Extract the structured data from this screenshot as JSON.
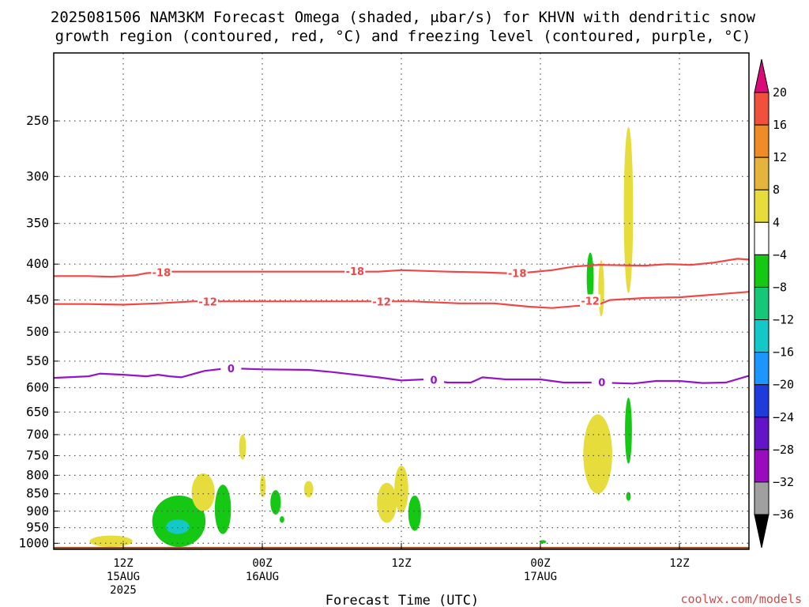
{
  "chart_data": {
    "type": "heatmap",
    "title_line1": "2025081506 NAM3KM Forecast Omega (shaded, μbar/s) for KHVN with dendritic snow",
    "title_line2": "growth region (contoured, red, °C) and freezing level (contoured, purple, °C)",
    "xlabel": "Forecast Time (UTC)",
    "ylabel": "",
    "credit": "coolwx.com/models",
    "x_range_hours": [
      -6,
      54
    ],
    "y_scale": "log-pressure",
    "y_range_hPa": [
      1020,
      200
    ],
    "y_ticks": [
      250,
      300,
      350,
      400,
      450,
      500,
      550,
      600,
      650,
      700,
      750,
      800,
      850,
      900,
      950,
      1000
    ],
    "x_ticks": [
      {
        "hour": 0,
        "line1": "12Z",
        "line2": "15AUG",
        "line3": "2025"
      },
      {
        "hour": 12,
        "line1": "00Z",
        "line2": "16AUG",
        "line3": ""
      },
      {
        "hour": 24,
        "line1": "12Z",
        "line2": "",
        "line3": ""
      },
      {
        "hour": 36,
        "line1": "00Z",
        "line2": "17AUG",
        "line3": ""
      },
      {
        "hour": 48,
        "line1": "12Z",
        "line2": "",
        "line3": ""
      }
    ],
    "grid": "dotted horizontal at each y tick, dotted vertical at each x tick",
    "ground_color": "#a0522d",
    "colorbar": {
      "levels": [
        "20",
        "16",
        "12",
        "8",
        "4",
        "−4",
        "−8",
        "−12",
        "−16",
        "−20",
        "−24",
        "−28",
        "−32",
        "−36"
      ],
      "colors": [
        "#dc2850",
        "#f0503c",
        "#f08c28",
        "#e6b43c",
        "#e6dc3c",
        "#ffffff",
        "#14c814",
        "#14c878",
        "#14c8c8",
        "#1e96ff",
        "#1e3cdc",
        "#6414c8",
        "#9a0abe",
        "#a0a0a0",
        "#000000"
      ],
      "top_arrow_color": "#dc0a78",
      "bottom_arrow_color": "#000000"
    },
    "contours": [
      {
        "name": "-18",
        "color": "#f04646",
        "points": [
          [
            -6,
            416
          ],
          [
            -3,
            416
          ],
          [
            -1,
            417
          ],
          [
            1,
            415
          ],
          [
            2,
            412
          ],
          [
            4,
            410
          ],
          [
            8,
            410
          ],
          [
            12,
            410
          ],
          [
            18,
            410
          ],
          [
            22,
            410
          ],
          [
            24,
            408
          ],
          [
            28,
            410
          ],
          [
            31,
            411
          ],
          [
            33,
            412
          ],
          [
            35,
            411
          ],
          [
            37,
            408
          ],
          [
            39,
            403
          ],
          [
            41,
            401
          ],
          [
            45,
            402
          ],
          [
            47,
            400
          ],
          [
            49,
            401
          ],
          [
            51,
            398
          ],
          [
            53,
            393
          ],
          [
            54,
            394
          ]
        ],
        "labels": [
          {
            "x": 3.3,
            "p": 411
          },
          {
            "x": 20,
            "p": 409
          },
          {
            "x": 34,
            "p": 412
          }
        ]
      },
      {
        "name": "-12",
        "color": "#f04646",
        "points": [
          [
            -6,
            456
          ],
          [
            -3,
            456
          ],
          [
            0,
            457
          ],
          [
            3,
            455
          ],
          [
            6,
            452
          ],
          [
            9,
            452
          ],
          [
            14,
            452
          ],
          [
            20,
            452
          ],
          [
            25,
            452
          ],
          [
            29,
            455
          ],
          [
            32,
            455
          ],
          [
            35,
            460
          ],
          [
            37,
            462
          ],
          [
            39,
            459
          ],
          [
            41,
            457
          ],
          [
            42,
            450
          ],
          [
            45,
            447
          ],
          [
            48,
            446
          ],
          [
            51,
            442
          ],
          [
            54,
            438
          ]
        ],
        "labels": [
          {
            "x": 7.3,
            "p": 452
          },
          {
            "x": 22.3,
            "p": 452
          },
          {
            "x": 40.3,
            "p": 451
          }
        ]
      },
      {
        "name": "0",
        "color": "#9614c8",
        "points": [
          [
            -6,
            581
          ],
          [
            -3,
            578
          ],
          [
            -2,
            573
          ],
          [
            0,
            575
          ],
          [
            2,
            578
          ],
          [
            3,
            575
          ],
          [
            4,
            578
          ],
          [
            5,
            580
          ],
          [
            7,
            568
          ],
          [
            9,
            563
          ],
          [
            12,
            565
          ],
          [
            16,
            566
          ],
          [
            18,
            570
          ],
          [
            22,
            580
          ],
          [
            24,
            586
          ],
          [
            26,
            584
          ],
          [
            28,
            590
          ],
          [
            30,
            590
          ],
          [
            31,
            580
          ],
          [
            33,
            584
          ],
          [
            36,
            584
          ],
          [
            38,
            590
          ],
          [
            41,
            590
          ],
          [
            44,
            592
          ],
          [
            46,
            587
          ],
          [
            48,
            587
          ],
          [
            50,
            591
          ],
          [
            52,
            590
          ],
          [
            54,
            577
          ]
        ],
        "labels": [
          {
            "x": 9.3,
            "p": 563
          },
          {
            "x": 26.8,
            "p": 585
          },
          {
            "x": 41.3,
            "p": 589
          }
        ]
      }
    ],
    "omega_cells": [
      {
        "x": [
          -2.9,
          0.8
        ],
        "p": [
          1012,
          975
        ],
        "value": 6
      },
      {
        "x": [
          2.5,
          7.1
        ],
        "p": [
          1012,
          855
        ],
        "value": -8
      },
      {
        "x": [
          3.7,
          5.7
        ],
        "p": [
          970,
          925
        ],
        "value": -16
      },
      {
        "x": [
          5.9,
          7.9
        ],
        "p": [
          900,
          795
        ],
        "value": 6
      },
      {
        "x": [
          7.9,
          9.3
        ],
        "p": [
          970,
          825
        ],
        "value": -8
      },
      {
        "x": [
          10.0,
          10.6
        ],
        "p": [
          760,
          700
        ],
        "value": 6
      },
      {
        "x": [
          11.8,
          12.3
        ],
        "p": [
          860,
          800
        ],
        "value": 6
      },
      {
        "x": [
          12.7,
          13.6
        ],
        "p": [
          910,
          840
        ],
        "value": -8
      },
      {
        "x": [
          13.5,
          13.9
        ],
        "p": [
          935,
          915
        ],
        "value": -8
      },
      {
        "x": [
          15.6,
          16.4
        ],
        "p": [
          860,
          815
        ],
        "value": 6
      },
      {
        "x": [
          21.9,
          23.6
        ],
        "p": [
          935,
          820
        ],
        "value": 6
      },
      {
        "x": [
          23.4,
          24.6
        ],
        "p": [
          905,
          775
        ],
        "value": 6
      },
      {
        "x": [
          24.6,
          25.7
        ],
        "p": [
          960,
          855
        ],
        "value": -8
      },
      {
        "x": [
          35.9,
          36.5
        ],
        "p": [
          1000,
          990
        ],
        "value": -8
      },
      {
        "x": [
          39.7,
          42.2
        ],
        "p": [
          850,
          655
        ],
        "value": 6
      },
      {
        "x": [
          40.0,
          40.6
        ],
        "p": [
          455,
          385
        ],
        "value": -8
      },
      {
        "x": [
          41.0,
          41.5
        ],
        "p": [
          475,
          395
        ],
        "value": 6
      },
      {
        "x": [
          43.3,
          43.9
        ],
        "p": [
          770,
          620
        ],
        "value": -8
      },
      {
        "x": [
          43.4,
          43.8
        ],
        "p": [
          870,
          845
        ],
        "value": -8
      },
      {
        "x": [
          43.2,
          44.0
        ],
        "p": [
          440,
          255
        ],
        "value": 6
      }
    ]
  }
}
